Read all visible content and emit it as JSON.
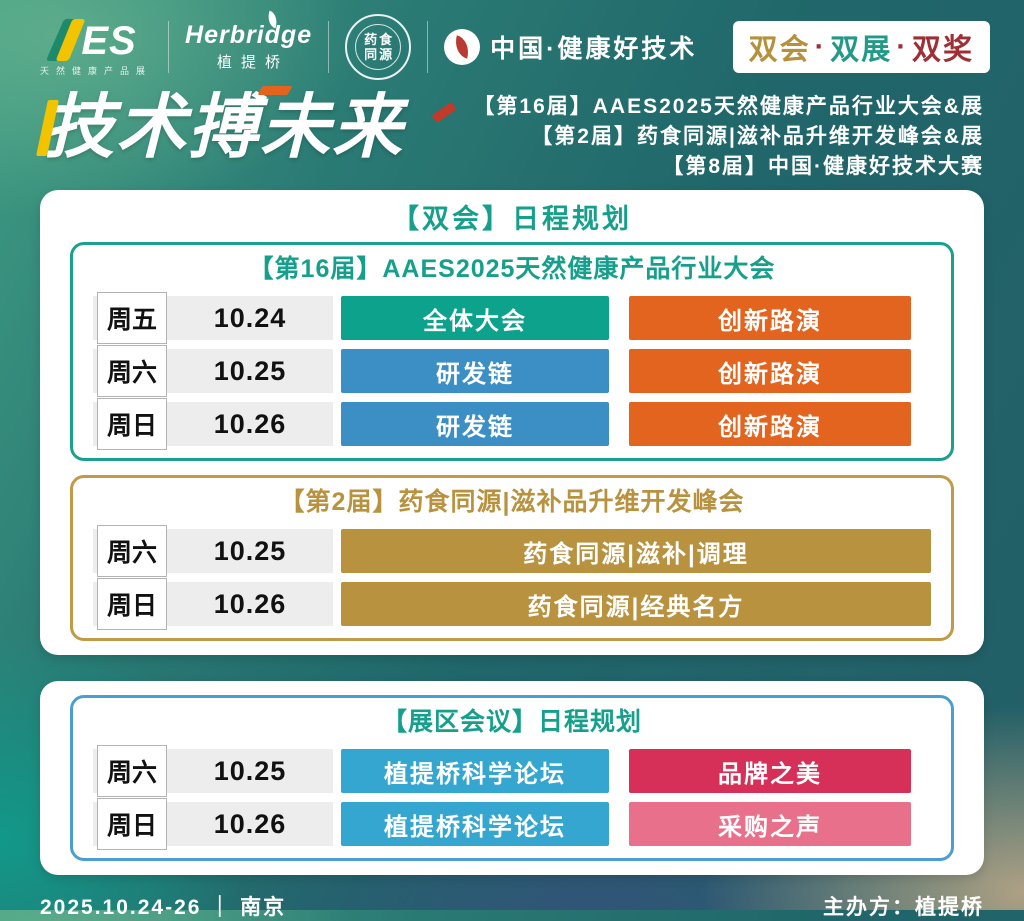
{
  "header": {
    "logos": {
      "aaes": {
        "mark": "ES",
        "tagline": "天然健康产品展"
      },
      "herbridge": {
        "en": "Herbridge",
        "cn": "植提桥"
      },
      "seal": {
        "line1": "药食",
        "line2": "同源"
      },
      "china_tech": {
        "label": "中国·健康好技术"
      }
    },
    "badge": {
      "separator": "·",
      "separator_color": "#9e2f35",
      "items": [
        {
          "text": "双会",
          "color": "#b5913c"
        },
        {
          "text": "双展",
          "color": "#239a87"
        },
        {
          "text": "双奖",
          "color": "#9e2f35"
        }
      ]
    }
  },
  "hero": {
    "title": "技术搏未来",
    "events": [
      "【第16届】AAES2025天然健康产品行业大会&展",
      "【第2届】药食同源|滋补品升维开发峰会&展",
      "【第8届】中国·健康好技术大赛"
    ]
  },
  "schedule_card": {
    "title": "【双会】日程规划",
    "title_color": "#16a08c",
    "sections": [
      {
        "title": "【第16届】AAES2025天然健康产品行业大会",
        "title_color": "#16a08c",
        "border_color": "#1aa18d",
        "rows": [
          {
            "day": "周五",
            "date": "10.24",
            "pills": [
              {
                "label": "全体大会",
                "color": "#0ca28c"
              },
              {
                "label": "创新路演",
                "color": "#e2641f"
              }
            ]
          },
          {
            "day": "周六",
            "date": "10.25",
            "pills": [
              {
                "label": "研发链",
                "color": "#3b8fc4"
              },
              {
                "label": "创新路演",
                "color": "#e2641f"
              }
            ]
          },
          {
            "day": "周日",
            "date": "10.26",
            "pills": [
              {
                "label": "研发链",
                "color": "#3b8fc4"
              },
              {
                "label": "创新路演",
                "color": "#e2641f"
              }
            ]
          }
        ]
      },
      {
        "title": "【第2届】药食同源|滋补品升维开发峰会",
        "title_color": "#b8923f",
        "border_color": "#c09a48",
        "rows": [
          {
            "day": "周六",
            "date": "10.25",
            "pills": [
              {
                "label": "药食同源|滋补|调理",
                "color": "#b8923f",
                "wide": true
              }
            ]
          },
          {
            "day": "周日",
            "date": "10.26",
            "pills": [
              {
                "label": "药食同源|经典名方",
                "color": "#b8923f",
                "wide": true
              }
            ]
          }
        ]
      }
    ]
  },
  "expo_card": {
    "section": {
      "title": "【展区会议】日程规划",
      "title_color": "#16a08c",
      "border_color": "#4a9fd0",
      "rows": [
        {
          "day": "周六",
          "date": "10.25",
          "pills": [
            {
              "label": "植提桥科学论坛",
              "color": "#35a6cf"
            },
            {
              "label": "品牌之美",
              "color": "#d62f58"
            }
          ]
        },
        {
          "day": "周日",
          "date": "10.26",
          "pills": [
            {
              "label": "植提桥科学论坛",
              "color": "#35a6cf"
            },
            {
              "label": "采购之声",
              "color": "#e8708a"
            }
          ]
        }
      ]
    }
  },
  "footer": {
    "left": "2025.10.24-26 ｜ 南京",
    "right": "主办方：植提桥"
  }
}
